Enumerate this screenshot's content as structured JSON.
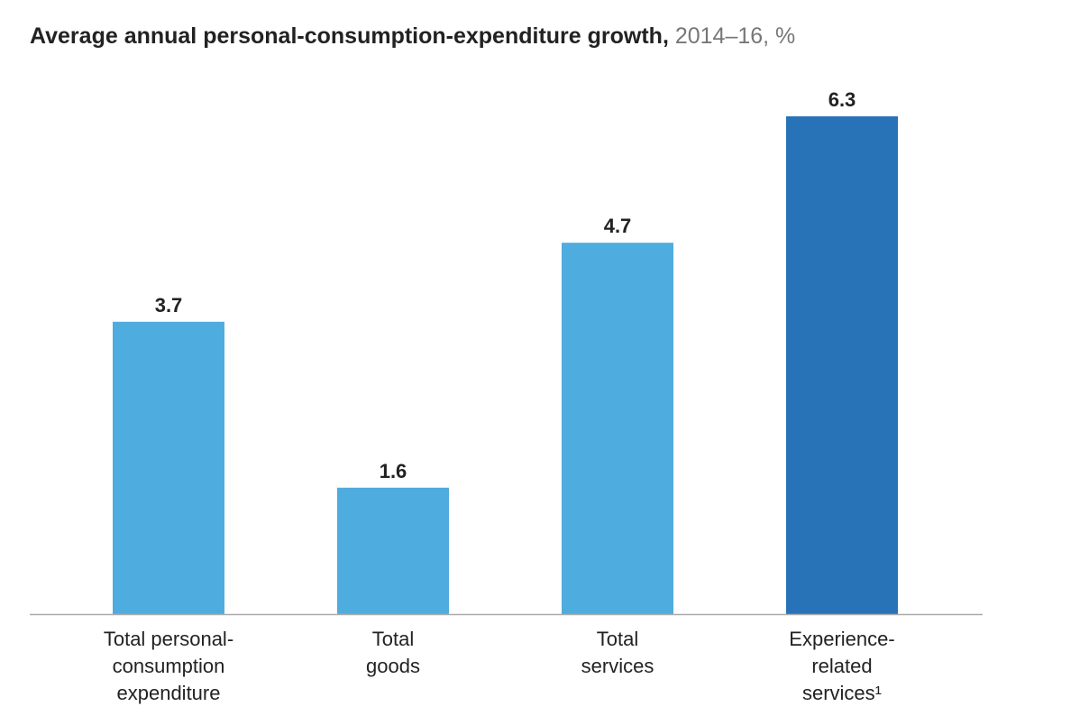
{
  "chart_data": {
    "type": "bar",
    "title": "Average annual personal-consumption-expenditure growth,",
    "subtitle": "2014–16, %",
    "categories": [
      "Total personal-consumption expenditure",
      "Total goods",
      "Total services",
      "Experience-related services¹"
    ],
    "category_label_lines": [
      [
        "Total personal-",
        "consumption",
        "expenditure"
      ],
      [
        "Total",
        "goods"
      ],
      [
        "Total",
        "services"
      ],
      [
        "Experience-",
        "related",
        "services¹"
      ]
    ],
    "values": [
      3.7,
      1.6,
      4.7,
      6.3
    ],
    "value_labels": [
      "3.7",
      "1.6",
      "4.7",
      "6.3"
    ],
    "colors": [
      "#4FACDF",
      "#4FACDF",
      "#4FACDF",
      "#2873B8"
    ],
    "ylim": [
      0,
      6.3
    ],
    "grid": false,
    "baseline_color": "#AAAAAA"
  }
}
